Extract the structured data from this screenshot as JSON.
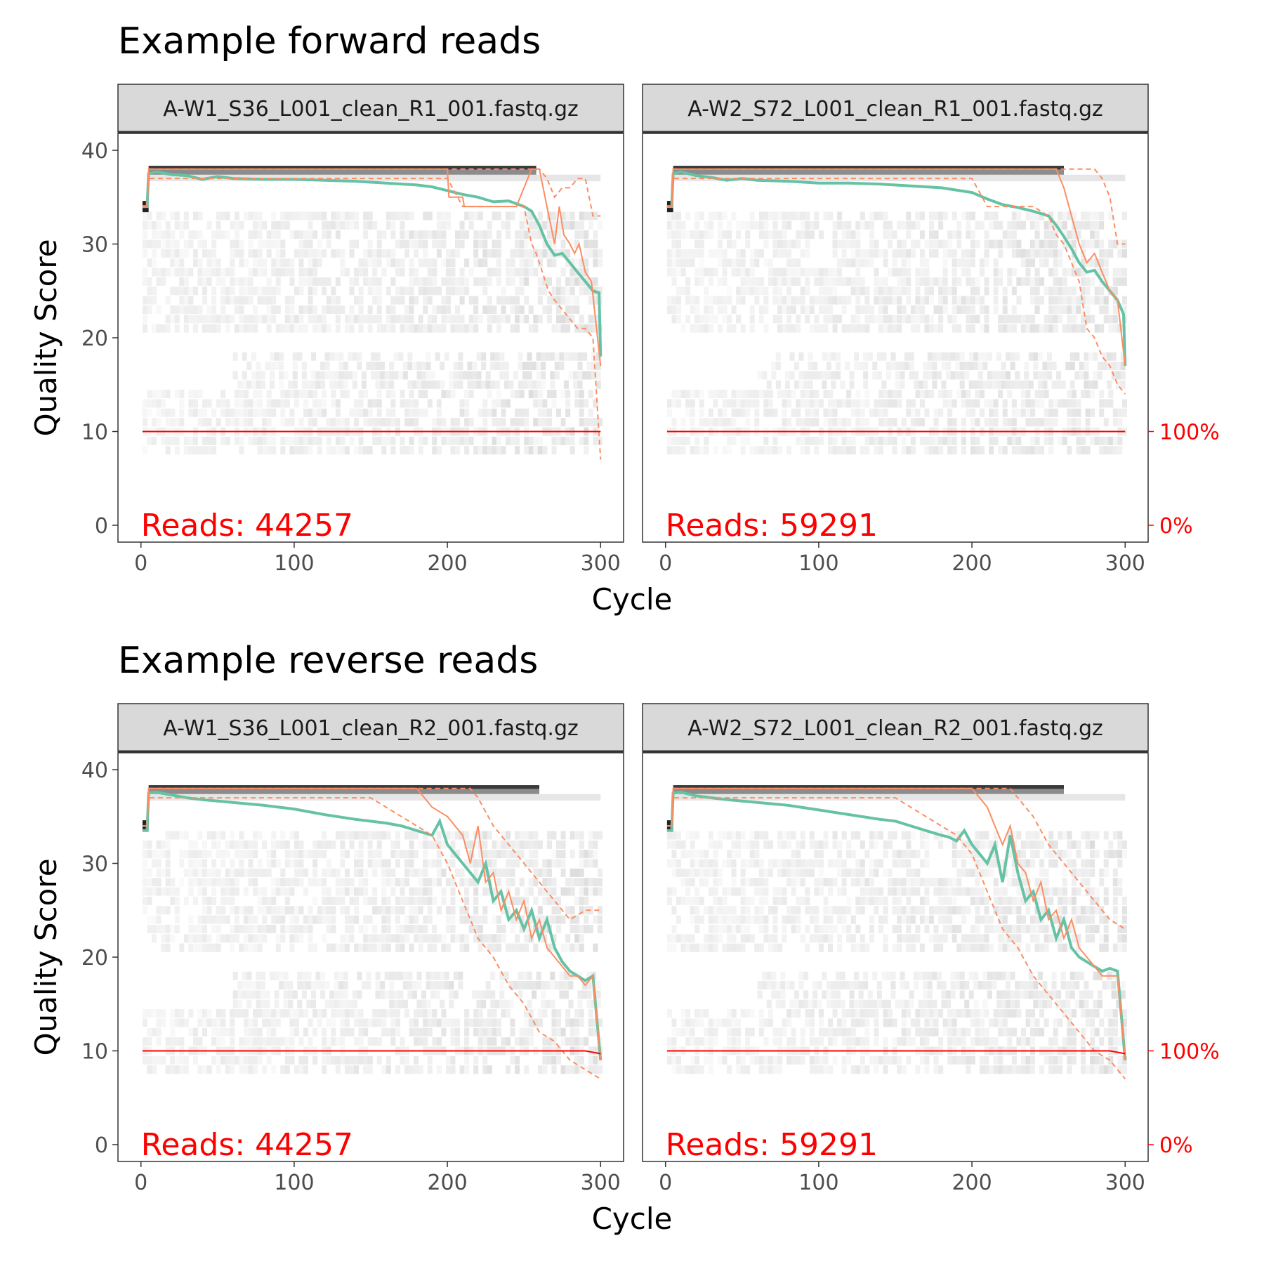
{
  "chart_data": [
    {
      "type": "line",
      "title": "Example forward reads",
      "xlabel": "Cycle",
      "ylabel": "Quality Score",
      "xlim": [
        0,
        300
      ],
      "ylim": [
        0,
        40
      ],
      "x_ticks": [
        "0",
        "100",
        "200",
        "300"
      ],
      "y_ticks": [
        "0",
        "10",
        "20",
        "30",
        "40"
      ],
      "cumulative_axis_ticks": [
        "0%",
        "100%"
      ],
      "colors": {
        "mean": "#66c2a5",
        "median": "#fc8d62",
        "quartiles": "#fc8d62",
        "cumulative": "#ff0000",
        "heatmap": "#f0f0f0"
      },
      "panels": [
        {
          "strip": "A-W1_S36_L001_clean_R1_001.fastq.gz",
          "reads_label": "Reads:  44257",
          "series": [
            {
              "role": "mean",
              "x": [
                1,
                4,
                5,
                10,
                20,
                30,
                40,
                50,
                60,
                80,
                100,
                120,
                140,
                160,
                180,
                190,
                200,
                210,
                220,
                230,
                240,
                250,
                255,
                260,
                265,
                270,
                275,
                280,
                285,
                290,
                295,
                299,
                300
              ],
              "values": [
                34,
                34,
                37.5,
                37.7,
                37.4,
                37.3,
                36.9,
                37.2,
                37,
                36.9,
                36.9,
                36.8,
                36.7,
                36.5,
                36.3,
                36.1,
                35.7,
                35.3,
                35,
                34.5,
                34.6,
                34,
                33.5,
                32,
                30,
                28.8,
                29,
                28,
                27,
                26,
                25,
                24.8,
                18
              ]
            },
            {
              "role": "median",
              "x": [
                1,
                4,
                5,
                200,
                201,
                210,
                211,
                245,
                255,
                260,
                265,
                270,
                273,
                276,
                280,
                283,
                286,
                290,
                294,
                300
              ],
              "values": [
                34,
                34,
                38,
                38,
                35,
                35,
                34,
                34,
                38,
                38,
                34,
                30,
                34,
                31,
                30,
                29,
                30,
                27,
                26,
                17
              ]
            },
            {
              "role": "quartile",
              "x": [
                1,
                4,
                5,
                150,
                160,
                200,
                210,
                250,
                255,
                258,
                262,
                266,
                270,
                275,
                280,
                285,
                290,
                295,
                300
              ],
              "values": [
                34,
                34,
                37,
                37,
                37,
                37,
                34,
                34,
                30,
                29,
                27,
                25,
                24,
                23,
                22,
                21,
                21,
                20,
                7
              ]
            },
            {
              "role": "quartile",
              "x": [
                1,
                4,
                5,
                260,
                265,
                270,
                275,
                280,
                285,
                290,
                295,
                300
              ],
              "values": [
                34,
                34,
                38,
                38,
                37,
                35,
                36,
                36,
                37,
                37,
                33,
                33
              ]
            },
            {
              "role": "cumulative",
              "x": [
                1,
                300
              ],
              "values": [
                10,
                10
              ]
            }
          ]
        },
        {
          "strip": "A-W2_S72_L001_clean_R1_001.fastq.gz",
          "reads_label": "Reads:  59291",
          "series": [
            {
              "role": "mean",
              "x": [
                1,
                4,
                5,
                10,
                20,
                30,
                40,
                50,
                60,
                80,
                100,
                120,
                140,
                160,
                180,
                200,
                210,
                220,
                230,
                240,
                250,
                255,
                260,
                265,
                270,
                275,
                280,
                285,
                290,
                295,
                299,
                300
              ],
              "values": [
                34,
                34,
                37.5,
                37.7,
                37.3,
                37.1,
                36.8,
                37,
                36.8,
                36.7,
                36.5,
                36.5,
                36.4,
                36.2,
                36,
                35.5,
                34.8,
                34.2,
                33.9,
                33.5,
                33,
                32,
                30.8,
                29.5,
                28,
                27,
                27.2,
                26,
                25,
                24,
                22.5,
                17
              ]
            },
            {
              "role": "median",
              "x": [
                1,
                4,
                5,
                255,
                260,
                265,
                270,
                275,
                280,
                285,
                290,
                295,
                300
              ],
              "values": [
                34,
                34,
                38,
                38,
                36,
                33,
                30,
                28,
                29,
                27,
                25,
                24,
                17
              ]
            },
            {
              "role": "quartile",
              "x": [
                1,
                4,
                5,
                150,
                160,
                200,
                210,
                240,
                250,
                255,
                260,
                265,
                270,
                275,
                280,
                285,
                290,
                295,
                300
              ],
              "values": [
                34,
                34,
                37,
                37,
                37,
                37,
                34,
                34,
                33,
                31,
                30,
                28,
                26,
                21,
                20,
                18,
                17,
                15,
                14
              ]
            },
            {
              "role": "quartile",
              "x": [
                1,
                4,
                5,
                280,
                285,
                290,
                295,
                300
              ],
              "values": [
                34,
                34,
                38,
                38,
                37,
                35,
                30,
                30
              ]
            },
            {
              "role": "cumulative",
              "x": [
                1,
                300
              ],
              "values": [
                10,
                10
              ]
            }
          ]
        }
      ]
    },
    {
      "type": "line",
      "title": "Example reverse reads",
      "xlabel": "Cycle",
      "ylabel": "Quality Score",
      "xlim": [
        0,
        300
      ],
      "ylim": [
        0,
        40
      ],
      "x_ticks": [
        "0",
        "100",
        "200",
        "300"
      ],
      "y_ticks": [
        "0",
        "10",
        "20",
        "30",
        "40"
      ],
      "cumulative_axis_ticks": [
        "0%",
        "100%"
      ],
      "colors": {
        "mean": "#66c2a5",
        "median": "#fc8d62",
        "quartiles": "#fc8d62",
        "cumulative": "#ff0000",
        "heatmap": "#f0f0f0"
      },
      "panels": [
        {
          "strip": "A-W1_S36_L001_clean_R2_001.fastq.gz",
          "reads_label": "Reads:  44257",
          "series": [
            {
              "role": "mean",
              "x": [
                1,
                4,
                5,
                10,
                20,
                30,
                40,
                60,
                80,
                100,
                120,
                140,
                160,
                170,
                180,
                190,
                195,
                200,
                210,
                220,
                225,
                230,
                235,
                240,
                245,
                250,
                255,
                260,
                265,
                270,
                275,
                280,
                285,
                290,
                295,
                300
              ],
              "values": [
                33.5,
                33.5,
                37.5,
                37.6,
                37.3,
                37,
                36.8,
                36.5,
                36.2,
                35.8,
                35.2,
                34.7,
                34.3,
                34,
                33.5,
                33,
                34.5,
                32,
                30,
                28,
                30,
                26,
                27,
                24,
                25,
                23,
                25,
                22,
                24,
                21,
                19.5,
                18.5,
                18,
                17.5,
                18,
                9
              ]
            },
            {
              "role": "median",
              "x": [
                1,
                4,
                5,
                180,
                185,
                190,
                200,
                210,
                215,
                220,
                225,
                230,
                235,
                240,
                245,
                250,
                255,
                260,
                265,
                270,
                275,
                280,
                285,
                290,
                295,
                300
              ],
              "values": [
                34,
                34,
                38,
                38,
                37,
                36,
                35,
                33,
                30,
                34,
                28,
                29,
                25,
                27,
                24,
                26,
                22,
                24,
                21,
                20,
                19,
                18,
                18,
                17,
                18,
                9
              ]
            },
            {
              "role": "quartile",
              "x": [
                1,
                4,
                5,
                150,
                170,
                190,
                200,
                210,
                220,
                230,
                240,
                250,
                260,
                270,
                280,
                290,
                300
              ],
              "values": [
                34,
                34,
                37,
                37,
                35,
                33,
                30,
                26,
                22,
                20,
                17,
                15,
                12,
                11,
                9,
                8,
                7
              ]
            },
            {
              "role": "quartile",
              "x": [
                1,
                4,
                5,
                215,
                220,
                230,
                240,
                250,
                260,
                270,
                280,
                290,
                300
              ],
              "values": [
                34,
                34,
                38,
                38,
                37,
                34,
                32,
                30,
                28,
                26,
                24,
                25,
                25
              ]
            },
            {
              "role": "cumulative",
              "x": [
                1,
                290,
                300
              ],
              "values": [
                10,
                10,
                9.7
              ]
            }
          ]
        },
        {
          "strip": "A-W2_S72_L001_clean_R2_001.fastq.gz",
          "reads_label": "Reads:  59291",
          "series": [
            {
              "role": "mean",
              "x": [
                1,
                4,
                5,
                10,
                20,
                30,
                40,
                60,
                80,
                100,
                120,
                140,
                150,
                160,
                170,
                180,
                185,
                190,
                195,
                200,
                210,
                215,
                220,
                225,
                230,
                235,
                240,
                245,
                250,
                255,
                260,
                265,
                270,
                275,
                280,
                285,
                290,
                295,
                300
              ],
              "values": [
                33.5,
                33.5,
                37.5,
                37.6,
                37.2,
                37,
                36.8,
                36.5,
                36.2,
                35.7,
                35.2,
                34.7,
                34.5,
                34,
                33.5,
                33,
                32.8,
                32.4,
                33.5,
                32,
                30,
                32,
                28,
                33,
                29,
                26,
                27,
                24,
                25,
                22,
                24,
                21,
                20,
                19.5,
                19,
                18.5,
                18.8,
                18.5,
                9
              ]
            },
            {
              "role": "median",
              "x": [
                1,
                4,
                5,
                200,
                210,
                215,
                220,
                225,
                230,
                235,
                240,
                245,
                250,
                255,
                260,
                265,
                270,
                275,
                280,
                285,
                290,
                295,
                300
              ],
              "values": [
                34,
                34,
                38,
                38,
                36,
                34,
                32,
                34,
                30,
                29,
                26,
                28,
                24,
                25,
                22,
                24,
                21,
                20,
                19,
                18,
                18,
                18,
                9
              ]
            },
            {
              "role": "quartile",
              "x": [
                1,
                4,
                5,
                150,
                170,
                190,
                200,
                210,
                220,
                230,
                240,
                250,
                260,
                270,
                280,
                290,
                300
              ],
              "values": [
                34,
                34,
                37,
                37,
                35,
                33,
                31,
                27,
                23,
                21,
                18,
                16,
                14,
                12,
                10,
                9,
                7
              ]
            },
            {
              "role": "quartile",
              "x": [
                1,
                4,
                5,
                225,
                230,
                240,
                250,
                260,
                270,
                280,
                290,
                300
              ],
              "values": [
                34,
                34,
                38,
                38,
                37,
                35,
                32,
                30,
                28,
                26,
                24,
                23
              ]
            },
            {
              "role": "cumulative",
              "x": [
                1,
                290,
                300
              ],
              "values": [
                10,
                10,
                9.7
              ]
            }
          ]
        }
      ]
    }
  ]
}
